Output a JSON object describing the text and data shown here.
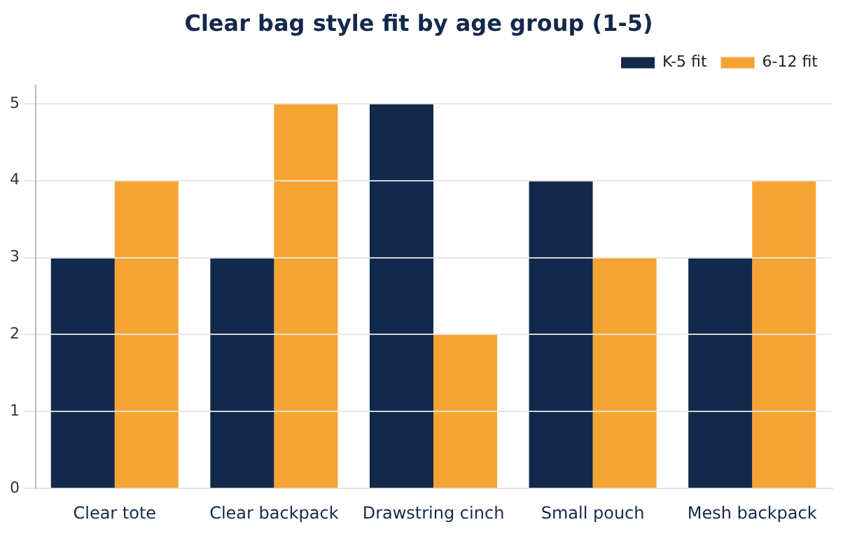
{
  "chart_data": {
    "type": "bar",
    "title": "Clear bag style fit by age group (1-5)",
    "categories": [
      "Clear tote",
      "Clear backpack",
      "Drawstring cinch",
      "Small pouch",
      "Mesh backpack"
    ],
    "series": [
      {
        "name": "K-5 fit",
        "color": "#13294b",
        "values": [
          3,
          3,
          5,
          4,
          3
        ]
      },
      {
        "name": "6-12 fit",
        "color": "#f5a433",
        "values": [
          4,
          5,
          2,
          3,
          4
        ]
      }
    ],
    "ylim": [
      0,
      5.25
    ],
    "yticks": [
      0,
      1,
      2,
      3,
      4,
      5
    ],
    "grid": "y",
    "legend": "top right"
  }
}
